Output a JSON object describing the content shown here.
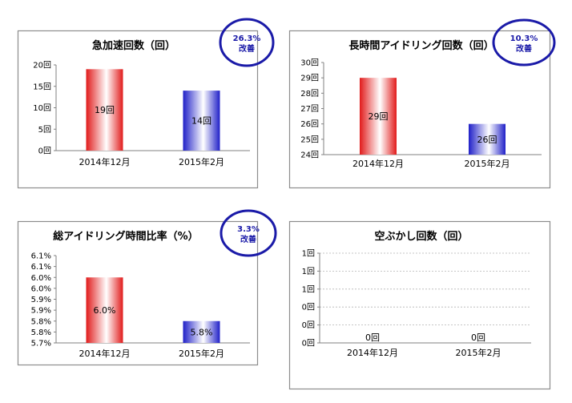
{
  "colors": {
    "badge": "#1a1aa8",
    "badge_text": "#1a1aa8",
    "bar_2014_edge": "#e11b1b",
    "bar_2014_mid": "#ffffff",
    "bar_2015_edge": "#2020c8",
    "bar_2015_mid": "#ffffff"
  },
  "chart_data": [
    {
      "type": "bar",
      "title": "急加速回数（回）",
      "badge": {
        "value": "26.3%",
        "label": "改善"
      },
      "categories": [
        "2014年12月",
        "2015年2月"
      ],
      "values": [
        19,
        14
      ],
      "data_labels": [
        "19回",
        "14回"
      ],
      "ylim": [
        0,
        20
      ],
      "yticks": [
        0,
        5,
        10,
        15,
        20
      ],
      "ytick_labels": [
        "0回",
        "5回",
        "10回",
        "15回",
        "20回"
      ],
      "grid": false
    },
    {
      "type": "bar",
      "title": "長時間アイドリング回数（回）",
      "badge": {
        "value": "10.3%",
        "label": "改善"
      },
      "categories": [
        "2014年12月",
        "2015年2月"
      ],
      "values": [
        29,
        26
      ],
      "data_labels": [
        "29回",
        "26回"
      ],
      "ylim": [
        24,
        30
      ],
      "yticks": [
        24,
        25,
        26,
        27,
        28,
        29,
        30
      ],
      "ytick_labels": [
        "24回",
        "25回",
        "26回",
        "27回",
        "28回",
        "29回",
        "30回"
      ],
      "grid": false
    },
    {
      "type": "bar",
      "title": "総アイドリング時間比率（%）",
      "badge": {
        "value": "3.3%",
        "label": "改善"
      },
      "categories": [
        "2014年12月",
        "2015年2月"
      ],
      "values": [
        6.0,
        5.8
      ],
      "data_labels": [
        "6.0%",
        "5.8%"
      ],
      "ylim": [
        5.7,
        6.1
      ],
      "yticks": [
        5.7,
        5.75,
        5.8,
        5.85,
        5.9,
        5.95,
        6.0,
        6.05,
        6.1
      ],
      "ytick_labels": [
        "5.7%",
        "5.8%",
        "5.8%",
        "5.9%",
        "5.9%",
        "6.0%",
        "6.0%",
        "6.1%",
        "6.1%"
      ],
      "grid": false
    },
    {
      "type": "bar",
      "title": "空ぶかし回数（回）",
      "categories": [
        "2014年12月",
        "2015年2月"
      ],
      "values": [
        0,
        0
      ],
      "data_labels": [
        "0回",
        "0回"
      ],
      "ylim": [
        0,
        1
      ],
      "yticks": [
        0,
        0.2,
        0.4,
        0.6,
        0.8,
        1.0
      ],
      "ytick_labels": [
        "0回",
        "0回",
        "0回",
        "1回",
        "1回",
        "1回"
      ],
      "grid": true
    }
  ]
}
